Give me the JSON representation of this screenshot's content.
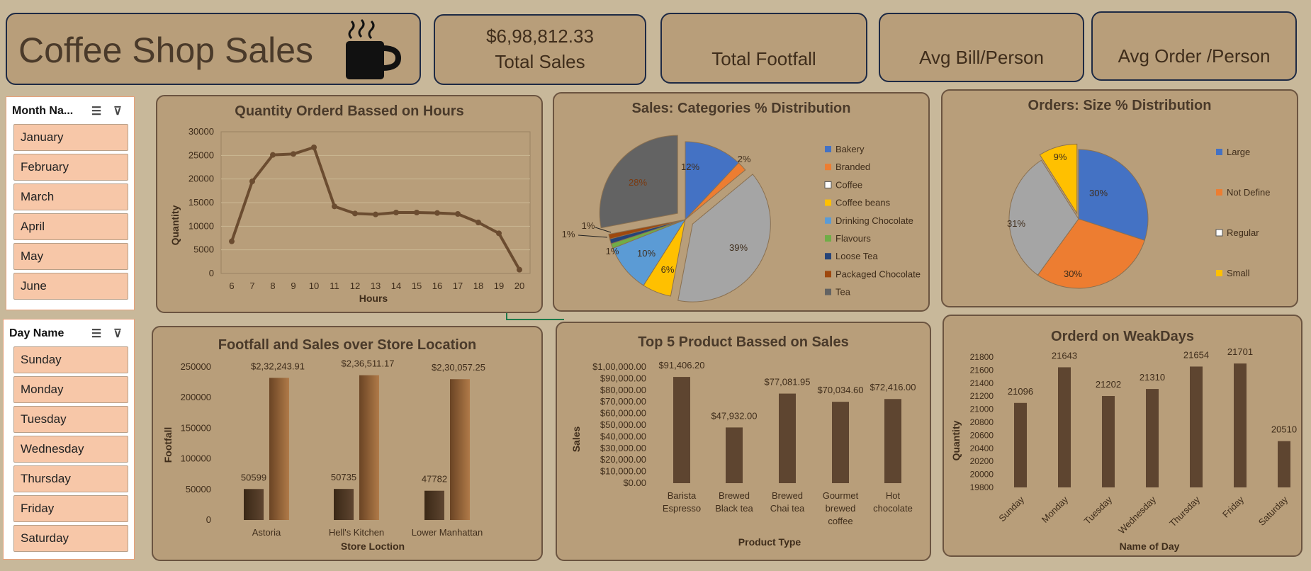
{
  "header": {
    "title": "Coffee Shop Sales",
    "icon": "coffee-cup-icon"
  },
  "kpis": [
    {
      "value": "$6,98,812.33",
      "label": "Total Sales"
    },
    {
      "value": "",
      "label": "Total Footfall"
    },
    {
      "value": "",
      "label": "Avg Bill/Person"
    },
    {
      "value": "",
      "label": "Avg Order /Person"
    }
  ],
  "slicers": {
    "month": {
      "header": "Month Na...",
      "items": [
        "January",
        "February",
        "March",
        "April",
        "May",
        "June"
      ]
    },
    "day": {
      "header": "Day Name",
      "items": [
        "Sunday",
        "Monday",
        "Tuesday",
        "Wednesday",
        "Thursday",
        "Friday",
        "Saturday"
      ]
    }
  },
  "charts": {
    "hours": {
      "title": "Quantity Orderd Bassed on Hours",
      "xlabel": "Hours",
      "ylabel": "Quantity",
      "y_ticks": [
        "30000",
        "25000",
        "20000",
        "15000",
        "10000",
        "5000",
        "0"
      ],
      "x_ticks": [
        "6",
        "7",
        "8",
        "9",
        "10",
        "11",
        "12",
        "13",
        "14",
        "15",
        "16",
        "17",
        "18",
        "19",
        "20"
      ]
    },
    "categories": {
      "title": "Sales: Categories % Distribution",
      "legend": [
        "Bakery",
        "Branded",
        "Coffee",
        "Coffee beans",
        "Drinking Chocolate",
        "Flavours",
        "Loose Tea",
        "Packaged Chocolate",
        "Tea"
      ],
      "labels": [
        "12%",
        "2%",
        "39%",
        "6%",
        "10%",
        "1%",
        "1%",
        "1%",
        "28%"
      ]
    },
    "sizes": {
      "title": "Orders: Size % Distribution",
      "legend": [
        "Large",
        "Not Define",
        "Regular",
        "Small"
      ],
      "labels": [
        "30%",
        "30%",
        "31%",
        "9%"
      ]
    },
    "stores": {
      "title": "Footfall and Sales over  Store Location",
      "xlabel": "Store Loction",
      "ylabel": "Footfall",
      "y_ticks": [
        "250000",
        "200000",
        "150000",
        "100000",
        "50000",
        "0"
      ],
      "categories": [
        "Astoria",
        "Hell's Kitchen",
        "Lower Manhattan"
      ],
      "footfall_labels": [
        "50599",
        "50735",
        "47782"
      ],
      "sales_labels": [
        "$2,32,243.91",
        "$2,36,511.17",
        "$2,30,057.25"
      ]
    },
    "products": {
      "title": "Top 5 Product Bassed on Sales",
      "xlabel": "Product Type",
      "ylabel": "Sales",
      "y_ticks": [
        "$1,00,000.00",
        "$90,000.00",
        "$80,000.00",
        "$70,000.00",
        "$60,000.00",
        "$50,000.00",
        "$40,000.00",
        "$30,000.00",
        "$20,000.00",
        "$10,000.00",
        "$0.00"
      ],
      "categories": [
        [
          "Barista",
          "Espresso"
        ],
        [
          "Brewed",
          "Black tea"
        ],
        [
          "Brewed",
          "Chai tea"
        ],
        [
          "Gourmet",
          "brewed",
          "coffee"
        ],
        [
          "Hot",
          "chocolate"
        ]
      ],
      "value_labels": [
        "$91,406.20",
        "$47,932.00",
        "$77,081.95",
        "$70,034.60",
        "$72,416.00"
      ]
    },
    "weekdays": {
      "title": "Orderd on WeakDays",
      "xlabel": "Name of Day",
      "ylabel": "Quantity",
      "y_ticks": [
        "21800",
        "21600",
        "21400",
        "21200",
        "21000",
        "20800",
        "20600",
        "20400",
        "20200",
        "20000",
        "19800"
      ],
      "categories": [
        "Sunday",
        "Monday",
        "Tuesday",
        "Wednesday",
        "Thursday",
        "Friday",
        "Saturday"
      ],
      "value_labels": [
        "21096",
        "21643",
        "21202",
        "21310",
        "21654",
        "21701",
        "20510"
      ]
    }
  },
  "chart_data": [
    {
      "type": "line",
      "x": [
        6,
        7,
        8,
        9,
        10,
        11,
        12,
        13,
        14,
        15,
        16,
        17,
        18,
        19,
        20
      ],
      "y": [
        6800,
        19500,
        25100,
        25300,
        26700,
        14200,
        12700,
        12500,
        12900,
        12900,
        12800,
        12600,
        10800,
        8500,
        800
      ],
      "ylim": [
        0,
        30000
      ],
      "color": "#6b4c30"
    },
    {
      "type": "pie",
      "categories": [
        "Bakery",
        "Branded",
        "Coffee",
        "Coffee beans",
        "Drinking Chocolate",
        "Flavours",
        "Loose Tea",
        "Packaged Chocolate",
        "Tea"
      ],
      "values": [
        12,
        2,
        39,
        6,
        10,
        1,
        1,
        1,
        28
      ],
      "colors": [
        "#4472c4",
        "#ed7d31",
        "#a5a5a5",
        "#ffc000",
        "#5b9bd5",
        "#70ad47",
        "#264478",
        "#9e480e",
        "#636363"
      ]
    },
    {
      "type": "pie",
      "categories": [
        "Large",
        "Not Define",
        "Regular",
        "Small"
      ],
      "values": [
        30,
        30,
        31,
        9
      ],
      "colors": [
        "#4472c4",
        "#ed7d31",
        "#a5a5a5",
        "#ffc000"
      ]
    },
    {
      "type": "bar",
      "categories": [
        "Astoria",
        "Hell's Kitchen",
        "Lower Manhattan"
      ],
      "series": [
        {
          "values": [
            50599,
            50735,
            47782
          ]
        },
        {
          "values": [
            232243.91,
            236511.17,
            230057.25
          ]
        }
      ],
      "ylim": [
        0,
        250000
      ]
    },
    {
      "type": "bar",
      "categories": [
        "Barista Espresso",
        "Brewed Black tea",
        "Brewed Chai tea",
        "Gourmet brewed coffee",
        "Hot chocolate"
      ],
      "values": [
        91406.2,
        47932.0,
        77081.95,
        70034.6,
        72416.0
      ],
      "ylim": [
        0,
        100000
      ],
      "color": "#5e4530"
    },
    {
      "type": "bar",
      "categories": [
        "Sunday",
        "Monday",
        "Tuesday",
        "Wednesday",
        "Thursday",
        "Friday",
        "Saturday"
      ],
      "values": [
        21096,
        21643,
        21202,
        21310,
        21654,
        21701,
        20510
      ],
      "ylim": [
        19800,
        21800
      ],
      "color": "#5e4530"
    }
  ]
}
